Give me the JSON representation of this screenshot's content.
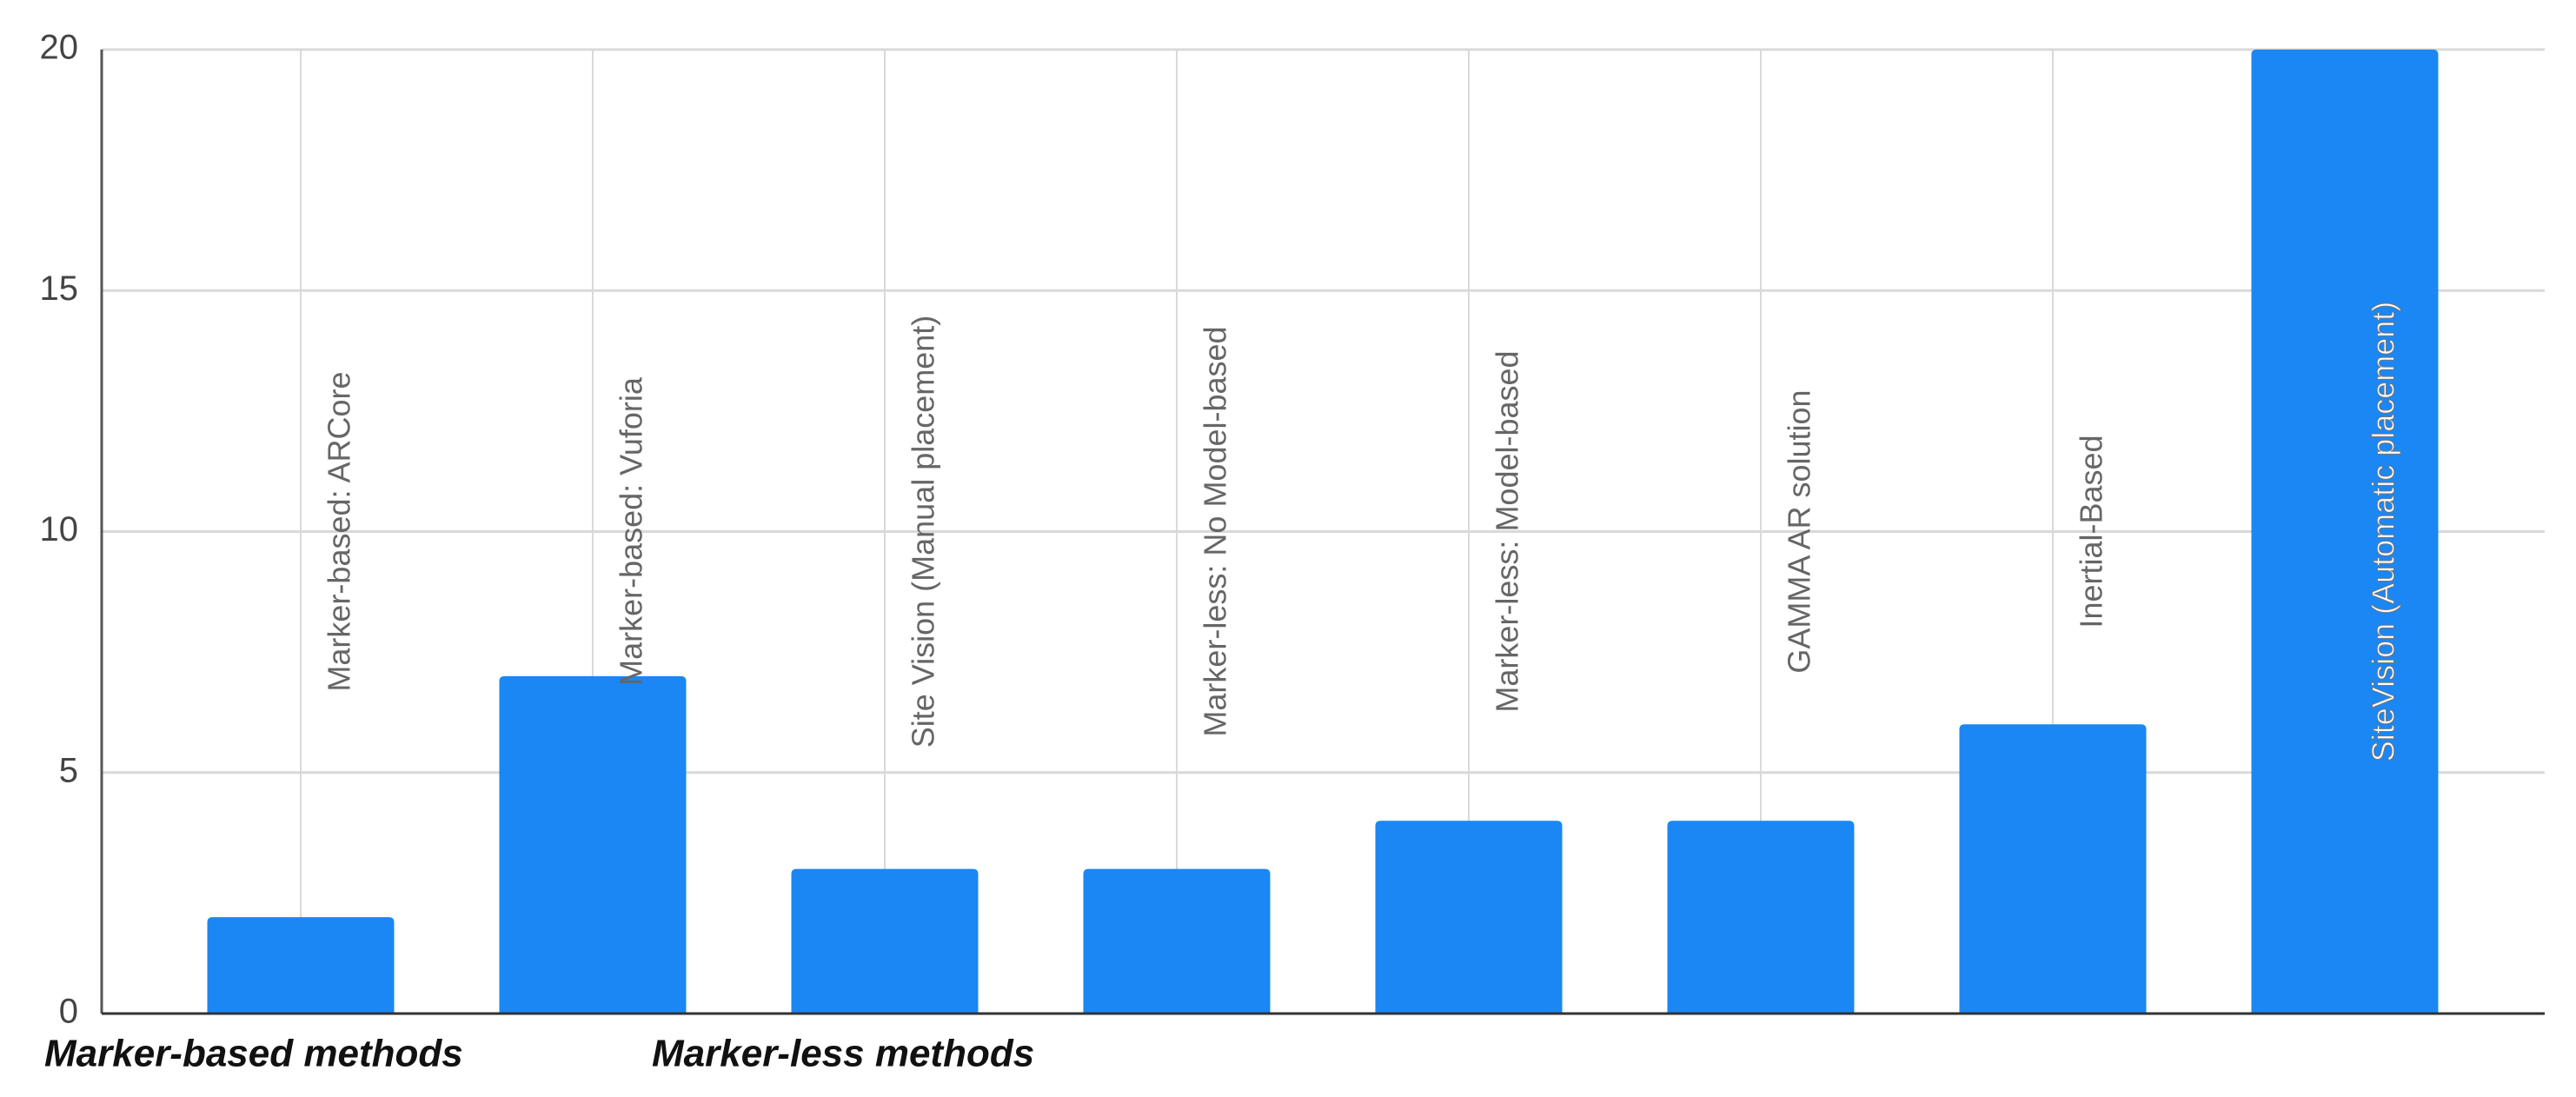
{
  "chart_data": {
    "type": "bar",
    "categories": [
      "Marker-based: ARCore",
      "Marker-based: Vuforia",
      "Site Vision (Manual placement)",
      "Marker-less: No Model-based",
      "Marker-less: Model-based",
      "GAMMA AR solution",
      "Inertial-Based",
      "SiteVision (Automatic placement)"
    ],
    "values": [
      2,
      7,
      3,
      3,
      4,
      4,
      6,
      20
    ],
    "color": "#1a87f4",
    "ylim": [
      0,
      20
    ],
    "yticks": [
      0,
      5,
      10,
      15,
      20
    ],
    "grid": true,
    "annotations": [
      "Marker-based methods",
      "Marker-less methods"
    ]
  }
}
